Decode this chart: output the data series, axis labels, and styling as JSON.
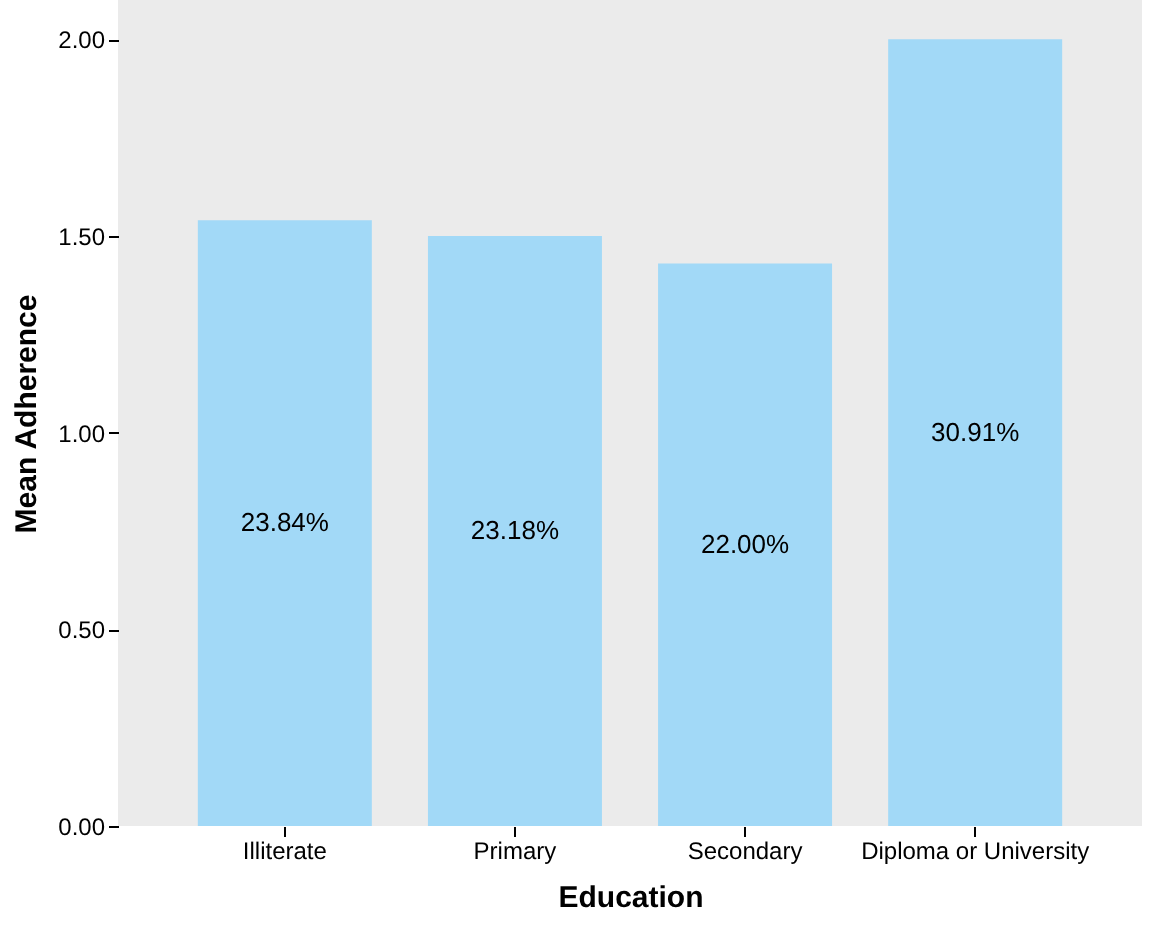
{
  "chart_data": {
    "type": "bar",
    "xlabel": "Education",
    "ylabel": "Mean Adherence",
    "categories": [
      "Illiterate",
      "Primary",
      "Secondary",
      "Diploma or University"
    ],
    "values": [
      1.54,
      1.5,
      1.43,
      2.0
    ],
    "annotations": [
      "23.84%",
      "23.18%",
      "22.00%",
      "30.91%"
    ],
    "color": "#a2d9f7",
    "ylim": [
      0,
      2.1
    ],
    "yticks": [
      {
        "value": 0,
        "label": "0.00"
      },
      {
        "value": 0.5,
        "label": "0.50"
      },
      {
        "value": 1,
        "label": "1.00"
      },
      {
        "value": 1.5,
        "label": "1.50"
      },
      {
        "value": 2,
        "label": "2.00"
      }
    ],
    "grid": false
  }
}
